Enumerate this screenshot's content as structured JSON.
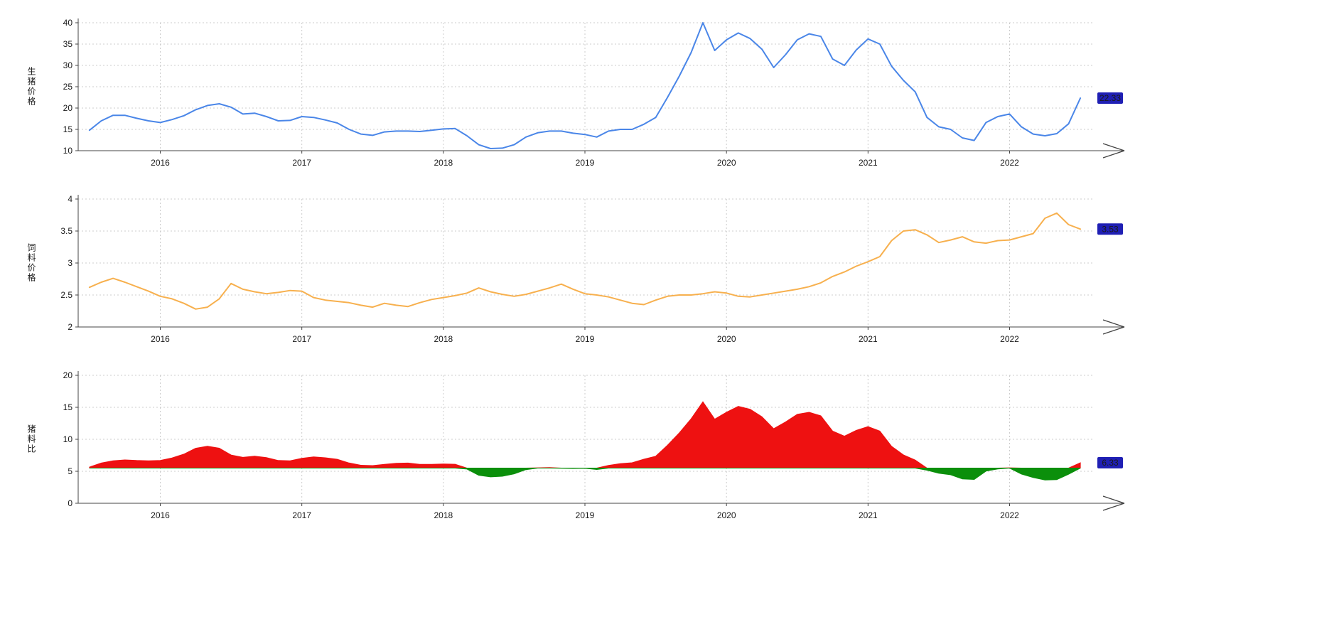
{
  "page": {
    "background": "#ffffff"
  },
  "chart_data": [
    {
      "type": "line",
      "name": "生猪价格",
      "y_title": "生猪价格",
      "title": "",
      "color": "#4a86e8",
      "badge_color": "#1f1fb4",
      "last_value_label": "22.33",
      "ylim": [
        10,
        40
      ],
      "yticks": [
        10,
        15,
        20,
        25,
        30,
        35,
        40
      ],
      "xlim": [
        2015.42,
        2022.6
      ],
      "x_years": [
        2016,
        2017,
        2018,
        2019,
        2020,
        2021,
        2022
      ],
      "x_tick_labels": [
        "2016",
        "2017",
        "2018",
        "2019",
        "2020",
        "2021",
        "2022"
      ],
      "x_start": 2015.5,
      "x_step": 0.0833,
      "values": [
        14.8,
        17.0,
        18.3,
        18.3,
        17.6,
        17.0,
        16.6,
        17.3,
        18.2,
        19.6,
        20.6,
        21.0,
        20.2,
        18.6,
        18.8,
        18.0,
        17.0,
        17.1,
        18.0,
        17.8,
        17.2,
        16.5,
        15.0,
        13.9,
        13.6,
        14.4,
        14.6,
        14.6,
        14.5,
        14.8,
        15.1,
        15.2,
        13.5,
        11.4,
        10.5,
        10.6,
        11.4,
        13.2,
        14.2,
        14.6,
        14.6,
        14.1,
        13.8,
        13.2,
        14.6,
        15.0,
        15.0,
        16.2,
        17.8,
        22.5,
        27.5,
        33.0,
        40.0,
        33.5,
        36.0,
        37.6,
        36.3,
        33.8,
        29.5,
        32.5,
        36.0,
        37.4,
        36.8,
        31.5,
        30.0,
        33.6,
        36.2,
        35.0,
        29.8,
        26.5,
        23.8,
        17.8,
        15.6,
        15.0,
        13.0,
        12.4,
        16.6,
        18.0,
        18.6,
        15.6,
        13.9,
        13.5,
        14.0,
        16.3,
        22.33
      ]
    },
    {
      "type": "line",
      "name": "饲料价格",
      "y_title": "饲料价格",
      "title": "",
      "color": "#f7b04e",
      "badge_color": "#1f1fb4",
      "last_value_label": "3.53",
      "ylim": [
        2,
        4
      ],
      "yticks": [
        2,
        2.5,
        3,
        3.5,
        4
      ],
      "xlim": [
        2015.42,
        2022.6
      ],
      "x_years": [
        2016,
        2017,
        2018,
        2019,
        2020,
        2021,
        2022
      ],
      "x_tick_labels": [
        "2016",
        "2017",
        "2018",
        "2019",
        "2020",
        "2021",
        "2022"
      ],
      "x_start": 2015.5,
      "x_step": 0.0833,
      "values": [
        2.62,
        2.7,
        2.76,
        2.7,
        2.63,
        2.56,
        2.48,
        2.44,
        2.37,
        2.28,
        2.31,
        2.44,
        2.68,
        2.59,
        2.55,
        2.52,
        2.54,
        2.57,
        2.56,
        2.46,
        2.42,
        2.4,
        2.38,
        2.34,
        2.31,
        2.37,
        2.34,
        2.32,
        2.38,
        2.43,
        2.46,
        2.49,
        2.53,
        2.61,
        2.55,
        2.51,
        2.48,
        2.51,
        2.56,
        2.61,
        2.67,
        2.59,
        2.52,
        2.5,
        2.47,
        2.42,
        2.37,
        2.35,
        2.42,
        2.48,
        2.5,
        2.5,
        2.52,
        2.55,
        2.53,
        2.48,
        2.47,
        2.5,
        2.53,
        2.56,
        2.59,
        2.63,
        2.69,
        2.79,
        2.86,
        2.95,
        3.02,
        3.1,
        3.35,
        3.5,
        3.52,
        3.44,
        3.32,
        3.36,
        3.41,
        3.33,
        3.31,
        3.35,
        3.36,
        3.41,
        3.46,
        3.7,
        3.78,
        3.6,
        3.53
      ]
    },
    {
      "type": "area-diff",
      "name": "猪料比",
      "y_title": "猪料比",
      "title": "",
      "baseline": 5.5,
      "colors": {
        "above": "#ee1111",
        "below": "#0b8f0b"
      },
      "badge_color": "#1f1fb4",
      "last_value_label": "6.33",
      "ylim": [
        0,
        20
      ],
      "yticks": [
        0,
        5,
        10,
        15,
        20
      ],
      "xlim": [
        2015.42,
        2022.6
      ],
      "x_years": [
        2016,
        2017,
        2018,
        2019,
        2020,
        2021,
        2022
      ],
      "x_tick_labels": [
        "2016",
        "2017",
        "2018",
        "2019",
        "2020",
        "2021",
        "2022"
      ],
      "x_start": 2015.5,
      "x_step": 0.0833,
      "values": [
        5.65,
        6.3,
        6.63,
        6.78,
        6.69,
        6.64,
        6.69,
        7.09,
        7.68,
        8.6,
        8.92,
        8.61,
        7.54,
        7.18,
        7.37,
        7.14,
        6.69,
        6.65,
        7.03,
        7.24,
        7.11,
        6.88,
        6.3,
        5.94,
        5.89,
        6.08,
        6.24,
        6.29,
        6.09,
        6.09,
        6.14,
        6.1,
        5.34,
        4.37,
        4.12,
        4.22,
        4.6,
        5.26,
        5.55,
        5.59,
        5.47,
        5.44,
        5.48,
        5.28,
        5.91,
        6.2,
        6.33,
        6.89,
        7.36,
        9.07,
        11.0,
        13.2,
        15.87,
        13.14,
        14.23,
        15.16,
        14.7,
        13.52,
        11.66,
        12.7,
        13.9,
        14.22,
        13.68,
        11.29,
        10.49,
        11.39,
        11.99,
        11.29,
        8.9,
        7.57,
        6.76,
        5.17,
        4.7,
        4.46,
        3.81,
        3.72,
        5.02,
        5.37,
        5.54,
        4.57,
        4.02,
        3.65,
        3.7,
        4.53,
        6.33
      ]
    }
  ],
  "style": {
    "grid_color": "#cccccc",
    "axis_color": "#444444",
    "tick_text_color": "#1a1a1a"
  }
}
